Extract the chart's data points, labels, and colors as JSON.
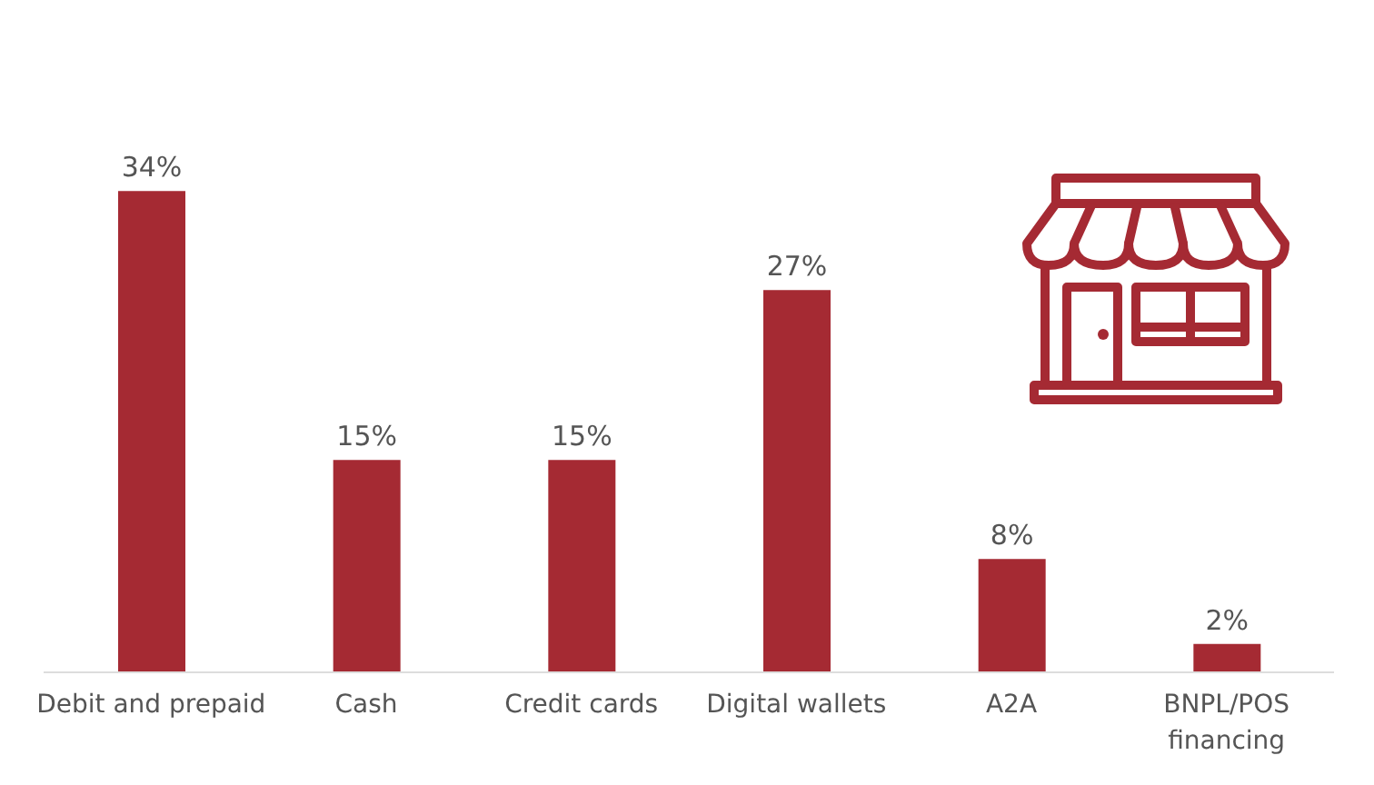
{
  "chart_data": {
    "type": "bar",
    "categories": [
      "Debit and prepaid",
      "Cash",
      "Credit cards",
      "Digital wallets",
      "A2A",
      "BNPL/POS financing"
    ],
    "values": [
      34,
      15,
      15,
      27,
      8,
      2
    ],
    "value_labels": [
      "34%",
      "15%",
      "15%",
      "27%",
      "8%",
      "2%"
    ],
    "color": "#a52a33"
  }
}
